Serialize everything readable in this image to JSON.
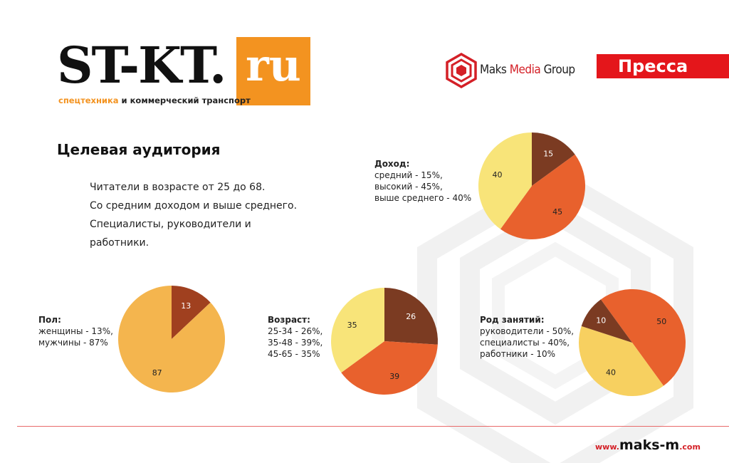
{
  "header": {
    "logo": {
      "main": "ST-KT.",
      "ru": "ru",
      "sub_accent": "спецтехника",
      "sub_rest": " и коммерческий транспорт"
    },
    "partner_logo": {
      "part1": "Maks ",
      "part2": "Media",
      "part3": " Group"
    },
    "press_label": "Пресса"
  },
  "audience": {
    "title": "Целевая аудитория",
    "lines": [
      "Читатели в возрасте от 25 до 68.",
      "Со средним доходом и выше среднего.",
      "Специалисты, руководители и",
      "работники."
    ]
  },
  "chart_data": [
    {
      "type": "pie",
      "id": "income",
      "title": "Доход:",
      "legend": [
        "средний - 15%,",
        "высокий - 45%,",
        "выше среднего - 40%"
      ],
      "categories": [
        "средний",
        "высокий",
        "выше среднего"
      ],
      "values": [
        15,
        45,
        40
      ],
      "colors": [
        "#7b3b22",
        "#e8612d",
        "#f8e479"
      ]
    },
    {
      "type": "pie",
      "id": "gender",
      "title": "Пол:",
      "legend": [
        "женщины - 13%,",
        "мужчины - 87%"
      ],
      "categories": [
        "женщины",
        "мужчины"
      ],
      "values": [
        13,
        87
      ],
      "colors": [
        "#a0401f",
        "#f4b54e"
      ]
    },
    {
      "type": "pie",
      "id": "age",
      "title": "Возраст:",
      "legend": [
        "25-34 - 26%,",
        "35-48 - 39%,",
        "45-65 - 35%"
      ],
      "categories": [
        "25-34",
        "35-48",
        "45-65"
      ],
      "values": [
        26,
        39,
        35
      ],
      "colors": [
        "#7b3b22",
        "#e8612d",
        "#f8e479"
      ]
    },
    {
      "type": "pie",
      "id": "occupation",
      "title": "Род занятий:",
      "legend": [
        "руководители - 50%,",
        "специалисты - 40%,",
        "работники - 10%"
      ],
      "categories": [
        "руководители",
        "специалисты",
        "работники"
      ],
      "values": [
        50,
        40,
        10
      ],
      "colors": [
        "#e8612d",
        "#f7d060",
        "#7b3b22"
      ]
    }
  ],
  "footer": {
    "www": "www.",
    "domain": "maks-m",
    "tld": ".com"
  }
}
